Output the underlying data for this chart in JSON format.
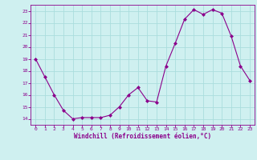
{
  "x": [
    0,
    1,
    2,
    3,
    4,
    5,
    6,
    7,
    8,
    9,
    10,
    11,
    12,
    13,
    14,
    15,
    16,
    17,
    18,
    19,
    20,
    21,
    22,
    23
  ],
  "y": [
    19,
    17.5,
    16,
    14.7,
    14,
    14.1,
    14.1,
    14.1,
    14.3,
    15,
    16,
    16.6,
    15.5,
    15.4,
    18.4,
    20.3,
    22.3,
    23.1,
    22.7,
    23.1,
    22.8,
    20.9,
    18.4,
    17.2
  ],
  "line_color": "#8B008B",
  "marker_color": "#8B008B",
  "bg_color": "#cff0f0",
  "grid_color": "#aadddd",
  "xlabel": "Windchill (Refroidissement éolien,°C)",
  "xlabel_color": "#8B008B",
  "tick_color": "#8B008B",
  "ylim": [
    13.5,
    23.5
  ],
  "xlim": [
    -0.5,
    23.5
  ],
  "yticks": [
    14,
    15,
    16,
    17,
    18,
    19,
    20,
    21,
    22,
    23
  ],
  "xticks": [
    0,
    1,
    2,
    3,
    4,
    5,
    6,
    7,
    8,
    9,
    10,
    11,
    12,
    13,
    14,
    15,
    16,
    17,
    18,
    19,
    20,
    21,
    22,
    23
  ],
  "figsize": [
    3.2,
    2.0
  ],
  "dpi": 100
}
